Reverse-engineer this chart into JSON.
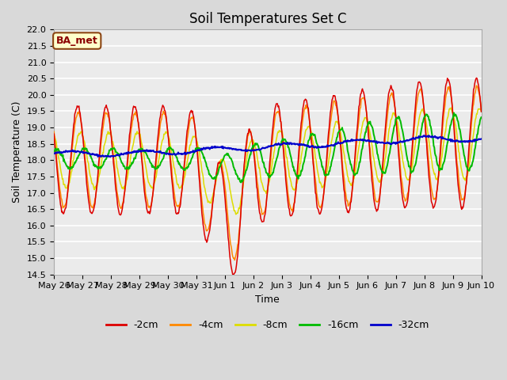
{
  "title": "Soil Temperatures Set C",
  "xlabel": "Time",
  "ylabel": "Soil Temperature (C)",
  "ylim": [
    14.5,
    22.0
  ],
  "yticks": [
    14.5,
    15.0,
    15.5,
    16.0,
    16.5,
    17.0,
    17.5,
    18.0,
    18.5,
    19.0,
    19.5,
    20.0,
    20.5,
    21.0,
    21.5,
    22.0
  ],
  "colors": {
    "-2cm": "#dd0000",
    "-4cm": "#ff8800",
    "-8cm": "#dddd00",
    "-16cm": "#00bb00",
    "-32cm": "#0000cc"
  },
  "legend_labels": [
    "-2cm",
    "-4cm",
    "-8cm",
    "-16cm",
    "-32cm"
  ],
  "annotation_text": "BA_met",
  "annotation_color": "#8B0000",
  "annotation_bg": "#ffffcc",
  "annotation_border": "#8B4513",
  "fig_facecolor": "#d9d9d9",
  "ax_facecolor": "#ebebeb",
  "grid_color": "#ffffff",
  "title_fontsize": 12,
  "label_fontsize": 9,
  "tick_fontsize": 8,
  "n_points": 720,
  "days": 15,
  "x_tick_labels": [
    "May 26",
    "May 27",
    "May 28",
    "May 29",
    "May 30",
    "May 31",
    "Jun 1",
    "Jun 2",
    "Jun 3",
    "Jun 4",
    "Jun 5",
    "Jun 6",
    "Jun 7",
    "Jun 8",
    "Jun 9",
    "Jun 10"
  ]
}
